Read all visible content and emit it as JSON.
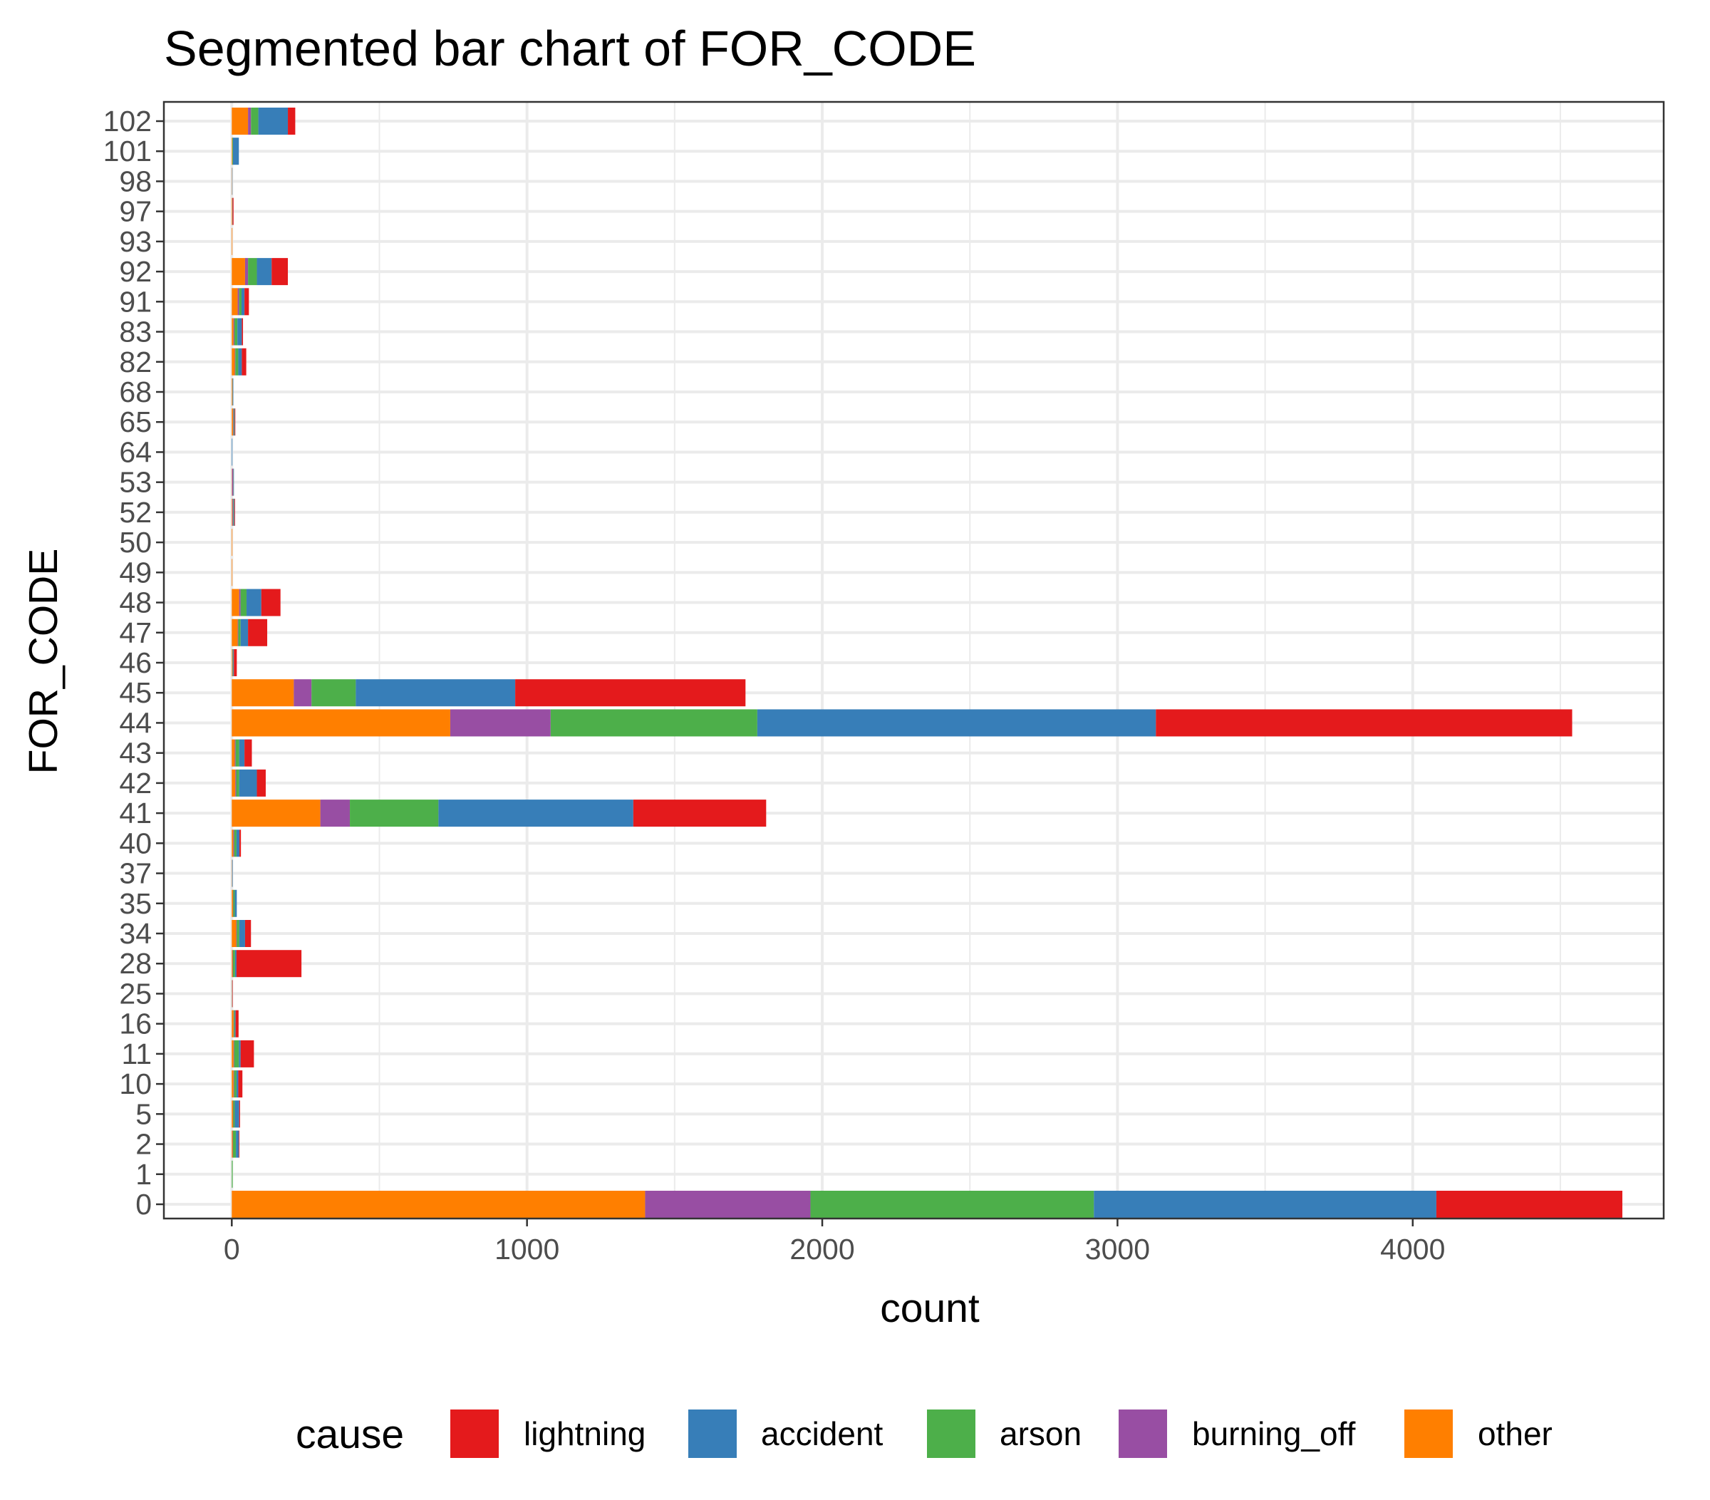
{
  "chart_data": {
    "type": "bar",
    "orientation": "horizontal",
    "stacked": true,
    "title": "Segmented bar chart of FOR_CODE",
    "xlabel": "count",
    "ylabel": "FOR_CODE",
    "xlim": [
      -230,
      4850
    ],
    "xticks": [
      0,
      1000,
      2000,
      3000,
      4000
    ],
    "grid": true,
    "legend": {
      "title": "cause",
      "position": "bottom",
      "entries": [
        "lightning",
        "accident",
        "arson",
        "burning_off",
        "other"
      ]
    },
    "colors": {
      "lightning": "#e41a1c",
      "accident": "#377eb8",
      "arson": "#4daf4a",
      "burning_off": "#984ea3",
      "other": "#ff7f00"
    },
    "stack_order": [
      "other",
      "burning_off",
      "arson",
      "accident",
      "lightning"
    ],
    "categories": [
      "0",
      "1",
      "2",
      "5",
      "10",
      "11",
      "16",
      "25",
      "28",
      "34",
      "35",
      "37",
      "40",
      "41",
      "42",
      "43",
      "44",
      "45",
      "46",
      "47",
      "48",
      "49",
      "50",
      "52",
      "53",
      "64",
      "65",
      "68",
      "82",
      "83",
      "91",
      "92",
      "93",
      "97",
      "98",
      "101",
      "102"
    ],
    "series": [
      {
        "name": "other",
        "values": [
          1400,
          0,
          3,
          4,
          6,
          6,
          6,
          1,
          3,
          15,
          4,
          1,
          5,
          300,
          12,
          10,
          740,
          210,
          2,
          20,
          25,
          2,
          2,
          2,
          1,
          0,
          4,
          2,
          10,
          6,
          20,
          45,
          2,
          2,
          1,
          2,
          55
        ]
      },
      {
        "name": "burning_off",
        "values": [
          560,
          0,
          1,
          1,
          2,
          2,
          1,
          0,
          1,
          2,
          1,
          0,
          3,
          100,
          3,
          3,
          340,
          60,
          1,
          2,
          5,
          0,
          0,
          3,
          4,
          0,
          2,
          1,
          2,
          3,
          5,
          10,
          0,
          0,
          0,
          0,
          10
        ]
      },
      {
        "name": "arson",
        "values": [
          960,
          3,
          10,
          5,
          8,
          16,
          3,
          0,
          7,
          8,
          5,
          0,
          8,
          300,
          10,
          12,
          700,
          150,
          2,
          8,
          20,
          0,
          0,
          2,
          1,
          0,
          2,
          1,
          10,
          10,
          8,
          30,
          0,
          0,
          0,
          2,
          25
        ]
      },
      {
        "name": "accident",
        "values": [
          1160,
          0,
          10,
          15,
          6,
          6,
          3,
          1,
          5,
          20,
          7,
          2,
          10,
          660,
          60,
          18,
          1350,
          540,
          2,
          25,
          50,
          0,
          0,
          2,
          1,
          2,
          2,
          1,
          12,
          15,
          10,
          50,
          0,
          1,
          1,
          20,
          100
        ]
      },
      {
        "name": "lightning",
        "values": [
          630,
          0,
          2,
          3,
          14,
          45,
          10,
          1,
          220,
          20,
          0,
          0,
          5,
          450,
          30,
          25,
          1410,
          780,
          10,
          65,
          65,
          0,
          0,
          2,
          0,
          0,
          2,
          0,
          15,
          4,
          15,
          55,
          0,
          3,
          0,
          0,
          25
        ]
      }
    ]
  }
}
